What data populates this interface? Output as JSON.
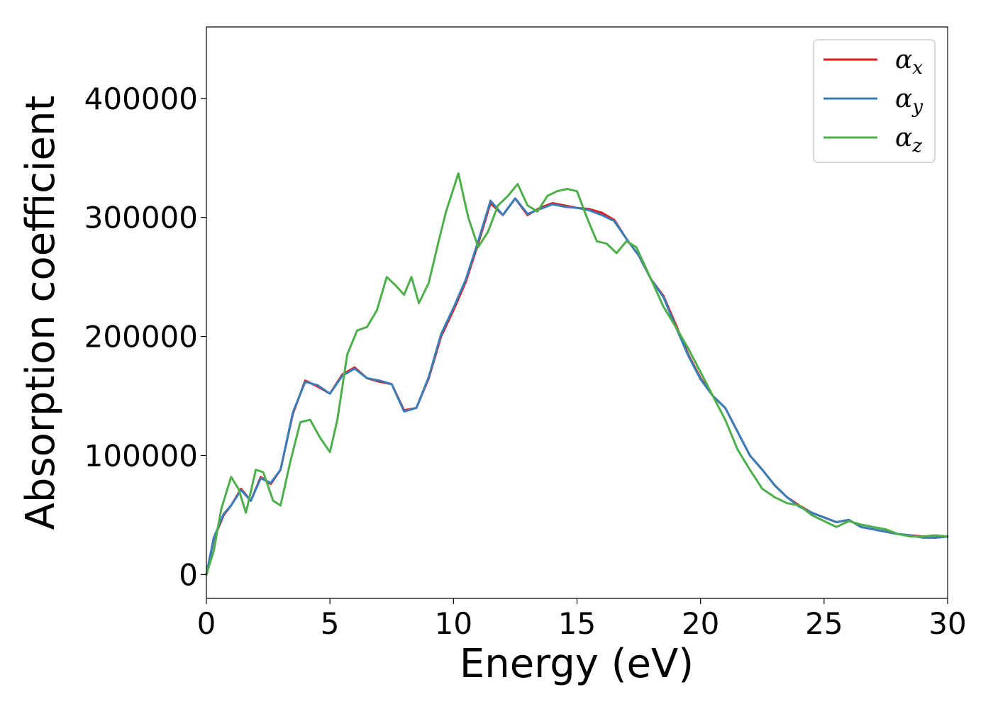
{
  "chart_data": {
    "type": "line",
    "xlabel": "Energy (eV)",
    "ylabel": "Absorption coefficient",
    "xlim": [
      0,
      30
    ],
    "ylim": [
      -20000,
      460000
    ],
    "xticks": [
      0,
      5,
      10,
      15,
      20,
      25,
      30
    ],
    "yticks": [
      0,
      100000,
      200000,
      300000,
      400000
    ],
    "grid": false,
    "legend_position": "top-right",
    "series": [
      {
        "name": "αx",
        "symbol": "α",
        "subscript": "x",
        "color": "#e41a1c",
        "x": [
          0,
          0.3,
          0.7,
          1.0,
          1.4,
          1.8,
          2.2,
          2.6,
          3.0,
          3.5,
          4.0,
          4.5,
          5.0,
          5.5,
          6.0,
          6.5,
          7.0,
          7.5,
          8.0,
          8.5,
          9.0,
          9.5,
          10.0,
          10.5,
          11.0,
          11.5,
          12.0,
          12.5,
          13.0,
          13.5,
          14.0,
          14.5,
          15.0,
          15.5,
          16.0,
          16.5,
          17.0,
          17.5,
          18.0,
          18.5,
          19.0,
          19.5,
          20.0,
          20.5,
          21.0,
          21.5,
          22.0,
          22.5,
          23.0,
          23.5,
          24.0,
          24.5,
          25.0,
          25.5,
          26.0,
          26.5,
          27.0,
          27.5,
          28.0,
          28.5,
          29.0,
          29.5,
          30.0
        ],
        "y": [
          0,
          30000,
          50000,
          58000,
          72000,
          62000,
          82000,
          76000,
          88000,
          135000,
          163000,
          158000,
          152000,
          168000,
          174000,
          165000,
          162000,
          160000,
          138000,
          140000,
          165000,
          200000,
          222000,
          246000,
          278000,
          312000,
          302000,
          316000,
          302000,
          308000,
          312000,
          310000,
          308000,
          307000,
          304000,
          298000,
          282000,
          268000,
          248000,
          234000,
          210000,
          185000,
          165000,
          150000,
          140000,
          120000,
          100000,
          88000,
          75000,
          65000,
          58000,
          52000,
          48000,
          44000,
          46000,
          40000,
          38000,
          36000,
          34000,
          33000,
          32000,
          31000,
          32000
        ]
      },
      {
        "name": "αy",
        "symbol": "α",
        "subscript": "y",
        "color": "#377eb8",
        "x": [
          0,
          0.3,
          0.7,
          1.0,
          1.4,
          1.8,
          2.2,
          2.6,
          3.0,
          3.5,
          4.0,
          4.5,
          5.0,
          5.5,
          6.0,
          6.5,
          7.0,
          7.5,
          8.0,
          8.5,
          9.0,
          9.5,
          10.0,
          10.5,
          11.0,
          11.5,
          12.0,
          12.5,
          13.0,
          13.5,
          14.0,
          14.5,
          15.0,
          15.5,
          16.0,
          16.5,
          17.0,
          17.5,
          18.0,
          18.5,
          19.0,
          19.5,
          20.0,
          20.5,
          21.0,
          21.5,
          22.0,
          22.5,
          23.0,
          23.5,
          24.0,
          24.5,
          25.0,
          25.5,
          26.0,
          26.5,
          27.0,
          27.5,
          28.0,
          28.5,
          29.0,
          29.5,
          30.0
        ],
        "y": [
          0,
          31000,
          51000,
          58000,
          71000,
          62000,
          81000,
          77000,
          88000,
          136000,
          162000,
          159000,
          152000,
          167000,
          173000,
          165000,
          163000,
          160000,
          137000,
          140000,
          166000,
          202000,
          224000,
          248000,
          280000,
          314000,
          302000,
          316000,
          303000,
          307000,
          311000,
          309000,
          308000,
          306000,
          302000,
          297000,
          282000,
          268000,
          248000,
          233000,
          208000,
          184000,
          164000,
          150000,
          140000,
          120000,
          100000,
          88000,
          75000,
          65000,
          57000,
          52000,
          48000,
          44000,
          46000,
          40000,
          38000,
          36000,
          34000,
          33000,
          31000,
          31000,
          32000
        ]
      },
      {
        "name": "αz",
        "symbol": "α",
        "subscript": "z",
        "color": "#4daf4a",
        "x": [
          0,
          0.3,
          0.6,
          1.0,
          1.3,
          1.6,
          2.0,
          2.3,
          2.7,
          3.0,
          3.4,
          3.8,
          4.2,
          4.6,
          5.0,
          5.3,
          5.7,
          6.1,
          6.5,
          6.9,
          7.3,
          7.7,
          8.0,
          8.3,
          8.6,
          9.0,
          9.4,
          9.7,
          10.2,
          10.6,
          11.0,
          11.4,
          11.8,
          12.2,
          12.6,
          13.0,
          13.4,
          13.8,
          14.2,
          14.6,
          15.0,
          15.4,
          15.8,
          16.2,
          16.6,
          17.0,
          17.4,
          18.0,
          18.5,
          19.0,
          19.5,
          20.0,
          20.5,
          21.0,
          21.5,
          22.0,
          22.5,
          23.0,
          23.5,
          24.0,
          24.5,
          25.0,
          25.5,
          26.0,
          26.5,
          27.0,
          27.5,
          28.0,
          28.5,
          29.0,
          29.5,
          30.0
        ],
        "y": [
          0,
          20000,
          55000,
          82000,
          72000,
          52000,
          88000,
          86000,
          62000,
          58000,
          95000,
          128000,
          130000,
          115000,
          103000,
          130000,
          185000,
          205000,
          208000,
          222000,
          250000,
          242000,
          235000,
          250000,
          228000,
          245000,
          280000,
          305000,
          337000,
          300000,
          275000,
          288000,
          310000,
          318000,
          328000,
          310000,
          305000,
          318000,
          322000,
          324000,
          322000,
          300000,
          280000,
          278000,
          270000,
          280000,
          275000,
          248000,
          225000,
          208000,
          190000,
          170000,
          150000,
          130000,
          105000,
          88000,
          72000,
          65000,
          60000,
          58000,
          50000,
          45000,
          40000,
          45000,
          42000,
          40000,
          38000,
          34000,
          32000,
          32000,
          33000,
          32000
        ]
      }
    ]
  }
}
